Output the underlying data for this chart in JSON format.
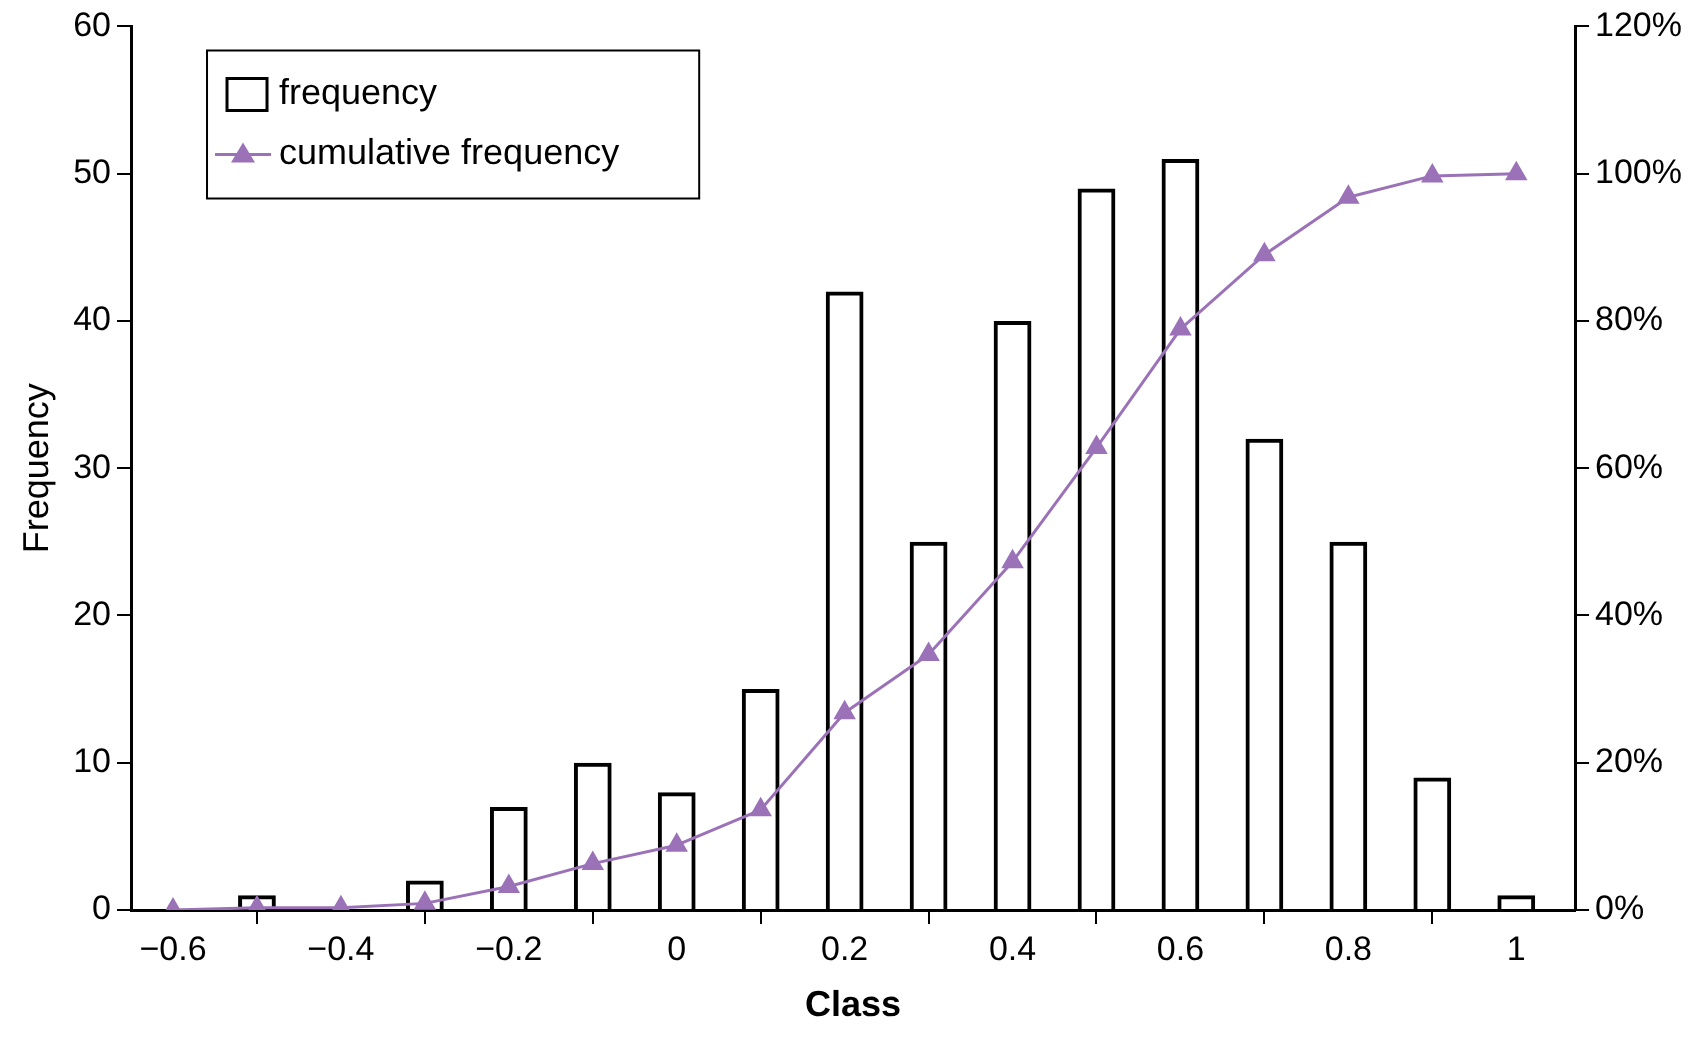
{
  "chart_data": {
    "type": "bar",
    "xlabel": "Class",
    "ylabel": "Frequency",
    "x": [
      -0.6,
      -0.5,
      -0.4,
      -0.3,
      -0.2,
      -0.1,
      0,
      0.1,
      0.2,
      0.3,
      0.4,
      0.5,
      0.6,
      0.7,
      0.8,
      0.9,
      1
    ],
    "series": [
      {
        "name": "frequency",
        "color": "#000000",
        "values": [
          0,
          1,
          0,
          2,
          7,
          10,
          8,
          15,
          42,
          25,
          40,
          49,
          51,
          32,
          25,
          9,
          1
        ]
      },
      {
        "name": "cumulative frequency",
        "type": "line",
        "axis": "y2",
        "color": "#9b72b8",
        "marker": "triangle",
        "values": [
          0,
          0.3,
          0.3,
          0.9,
          3.2,
          6.3,
          8.8,
          13.6,
          26.8,
          34.7,
          47.3,
          62.8,
          78.9,
          89.0,
          96.8,
          99.7,
          100
        ]
      }
    ],
    "xlim": [
      -0.65,
      1.07
    ],
    "xticks": [
      {
        "value": -0.6,
        "label": "−0.6"
      },
      {
        "value": -0.4,
        "label": "−0.4"
      },
      {
        "value": -0.2,
        "label": "−0.2"
      },
      0,
      0.2,
      0.4,
      0.6,
      0.8,
      1
    ],
    "ylim": [
      0,
      60
    ],
    "yticks": [
      0,
      10,
      20,
      30,
      40,
      50,
      60
    ],
    "y2lim": [
      0,
      120
    ],
    "y2ticks": [
      {
        "value": 0,
        "label": "0%"
      },
      {
        "value": 20,
        "label": "20%"
      },
      {
        "value": 40,
        "label": "40%"
      },
      {
        "value": 60,
        "label": "60%"
      },
      {
        "value": 80,
        "label": "80%"
      },
      {
        "value": 100,
        "label": "100%"
      },
      {
        "value": 120,
        "label": "120%"
      }
    ],
    "grid": false,
    "legend": "top left"
  }
}
